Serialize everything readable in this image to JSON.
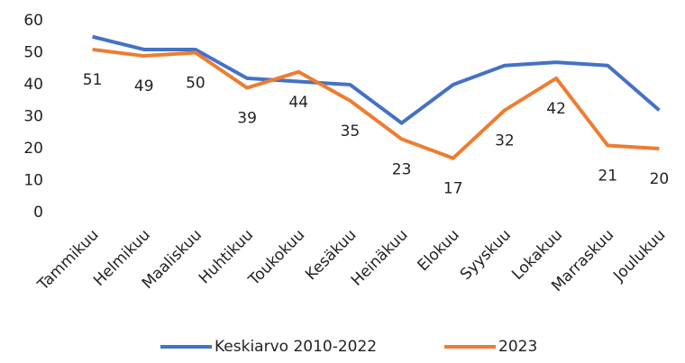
{
  "chart_data": {
    "type": "line",
    "categories": [
      "Tammikuu",
      "Helmikuu",
      "Maaliskuu",
      "Huhtikuu",
      "Toukokuu",
      "Kesäkuu",
      "Heinäkuu",
      "Elokuu",
      "Syyskuu",
      "Lokakuu",
      "Marraskuu",
      "Joulukuu"
    ],
    "series": [
      {
        "name": "Keskiarvo 2010-2022",
        "color": "#4472c4",
        "values": [
          55,
          51,
          51,
          42,
          41,
          40,
          28,
          40,
          46,
          47,
          46,
          32
        ]
      },
      {
        "name": "2023",
        "color": "#ed7d31",
        "values": [
          51,
          49,
          50,
          39,
          44,
          35,
          23,
          17,
          32,
          42,
          21,
          20
        ],
        "data_labels": true
      }
    ],
    "ylim": [
      0,
      60
    ],
    "yticks": [
      0,
      10,
      20,
      30,
      40,
      50,
      60
    ],
    "grid": false,
    "legend": "bottom"
  }
}
